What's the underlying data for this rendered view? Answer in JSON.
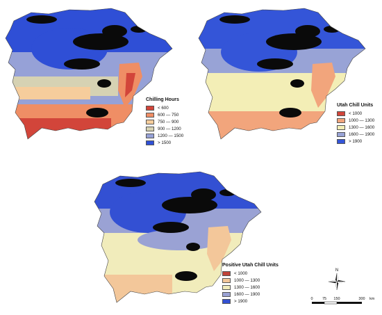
{
  "panels": [
    {
      "id": "chilling-hours",
      "legend_title": "Chilling Hours",
      "classes": [
        {
          "label": "< 600",
          "color": "#d2453a"
        },
        {
          "label": "600 — 750",
          "color": "#ef8e65"
        },
        {
          "label": "750 — 900",
          "color": "#f6cd9c"
        },
        {
          "label": "900 — 1200",
          "color": "#d6d2b3"
        },
        {
          "label": "1200 — 1500",
          "color": "#96a1d7"
        },
        {
          "label": "> 1500",
          "color": "#2f4fd6"
        }
      ]
    },
    {
      "id": "utah-chill-units",
      "legend_title": "Utah Chill Units",
      "classes": [
        {
          "label": "< 1000",
          "color": "#d2453a"
        },
        {
          "label": "1000 — 1300",
          "color": "#f2a57c"
        },
        {
          "label": "1300 — 1600",
          "color": "#f3eeb6"
        },
        {
          "label": "1600 — 1900",
          "color": "#98a3d6"
        },
        {
          "label": "> 1900",
          "color": "#3455d8"
        }
      ]
    },
    {
      "id": "positive-utah-chill-units",
      "legend_title": "Positive Utah Chill Units",
      "classes": [
        {
          "label": "< 1000",
          "color": "#c04338"
        },
        {
          "label": "1000 — 1300",
          "color": "#f3c79a"
        },
        {
          "label": "1300 — 1600",
          "color": "#f1ecbb"
        },
        {
          "label": "1600 — 1900",
          "color": "#9aa2d4"
        },
        {
          "label": "> 1900",
          "color": "#3350d3"
        }
      ]
    }
  ],
  "mountain_color": "#0a0a0a",
  "north_arrow": {
    "label": "N"
  },
  "scale_bar": {
    "ticks": [
      "0",
      "75",
      "150",
      "300"
    ],
    "unit": "km"
  }
}
